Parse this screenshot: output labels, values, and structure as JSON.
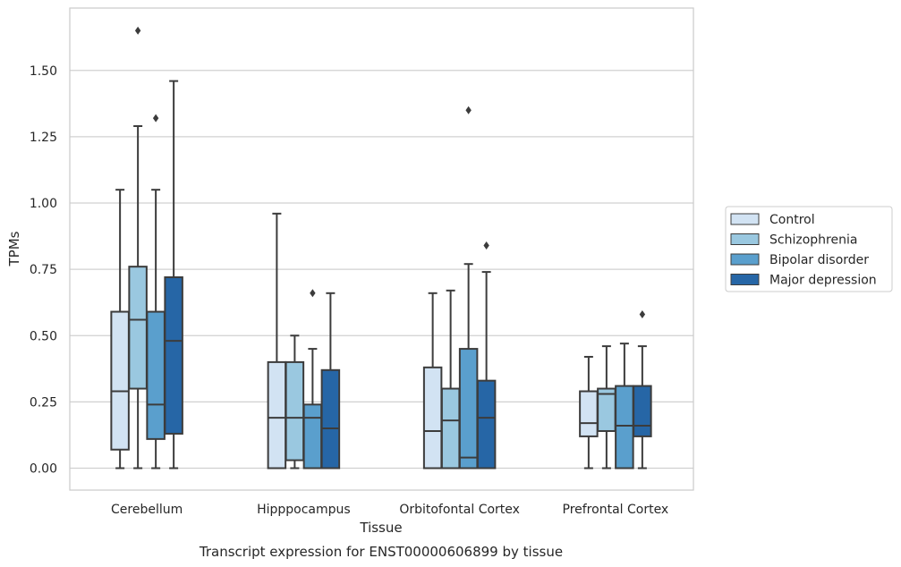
{
  "chart_data": {
    "type": "box",
    "caption": "Transcript expression for ENST00000606899 by tissue",
    "xlabel": "Tissue",
    "ylabel": "TPMs",
    "ylim": [
      -0.08,
      1.73
    ],
    "yticks": [
      0.0,
      0.25,
      0.5,
      0.75,
      1.0,
      1.25,
      1.5
    ],
    "ytick_labels": [
      "0.00",
      "0.25",
      "0.50",
      "0.75",
      "1.00",
      "1.25",
      "1.50"
    ],
    "grid": "horizontal",
    "legend_position": "right",
    "categories": [
      "Cerebellum",
      "Hipppocampus",
      "Orbitofontal Cortex",
      "Prefrontal Cortex"
    ],
    "series": [
      {
        "name": "Control",
        "color": "#d2e3f3",
        "boxes": [
          {
            "whislo": 0.0,
            "q1": 0.07,
            "med": 0.29,
            "q3": 0.59,
            "whishi": 1.05,
            "fliers": []
          },
          {
            "whislo": 0.0,
            "q1": 0.0,
            "med": 0.19,
            "q3": 0.4,
            "whishi": 0.96,
            "fliers": []
          },
          {
            "whislo": 0.0,
            "q1": 0.0,
            "med": 0.14,
            "q3": 0.38,
            "whishi": 0.66,
            "fliers": []
          },
          {
            "whislo": 0.0,
            "q1": 0.12,
            "med": 0.17,
            "q3": 0.29,
            "whishi": 0.42,
            "fliers": []
          }
        ]
      },
      {
        "name": "Schizophrenia",
        "color": "#9ac8e0",
        "boxes": [
          {
            "whislo": 0.0,
            "q1": 0.3,
            "med": 0.56,
            "q3": 0.76,
            "whishi": 1.29,
            "fliers": [
              1.65
            ]
          },
          {
            "whislo": 0.0,
            "q1": 0.03,
            "med": 0.19,
            "q3": 0.4,
            "whishi": 0.5,
            "fliers": []
          },
          {
            "whislo": 0.0,
            "q1": 0.0,
            "med": 0.18,
            "q3": 0.3,
            "whishi": 0.67,
            "fliers": []
          },
          {
            "whislo": 0.0,
            "q1": 0.14,
            "med": 0.28,
            "q3": 0.3,
            "whishi": 0.46,
            "fliers": []
          }
        ]
      },
      {
        "name": "Bipolar disorder",
        "color": "#5a9fcd",
        "boxes": [
          {
            "whislo": 0.0,
            "q1": 0.11,
            "med": 0.24,
            "q3": 0.59,
            "whishi": 1.05,
            "fliers": [
              1.32
            ]
          },
          {
            "whislo": 0.0,
            "q1": 0.0,
            "med": 0.19,
            "q3": 0.24,
            "whishi": 0.45,
            "fliers": [
              0.66
            ]
          },
          {
            "whislo": 0.0,
            "q1": 0.0,
            "med": 0.04,
            "q3": 0.45,
            "whishi": 0.77,
            "fliers": [
              1.35
            ]
          },
          {
            "whislo": 0.0,
            "q1": 0.0,
            "med": 0.16,
            "q3": 0.31,
            "whishi": 0.47,
            "fliers": []
          }
        ]
      },
      {
        "name": "Major depression",
        "color": "#2666a6",
        "boxes": [
          {
            "whislo": 0.0,
            "q1": 0.13,
            "med": 0.48,
            "q3": 0.72,
            "whishi": 1.46,
            "fliers": []
          },
          {
            "whislo": 0.0,
            "q1": 0.0,
            "med": 0.15,
            "q3": 0.37,
            "whishi": 0.66,
            "fliers": []
          },
          {
            "whislo": 0.0,
            "q1": 0.0,
            "med": 0.19,
            "q3": 0.33,
            "whishi": 0.74,
            "fliers": [
              0.84
            ]
          },
          {
            "whislo": 0.0,
            "q1": 0.12,
            "med": 0.16,
            "q3": 0.31,
            "whishi": 0.46,
            "fliers": [
              0.58
            ]
          }
        ]
      }
    ]
  }
}
